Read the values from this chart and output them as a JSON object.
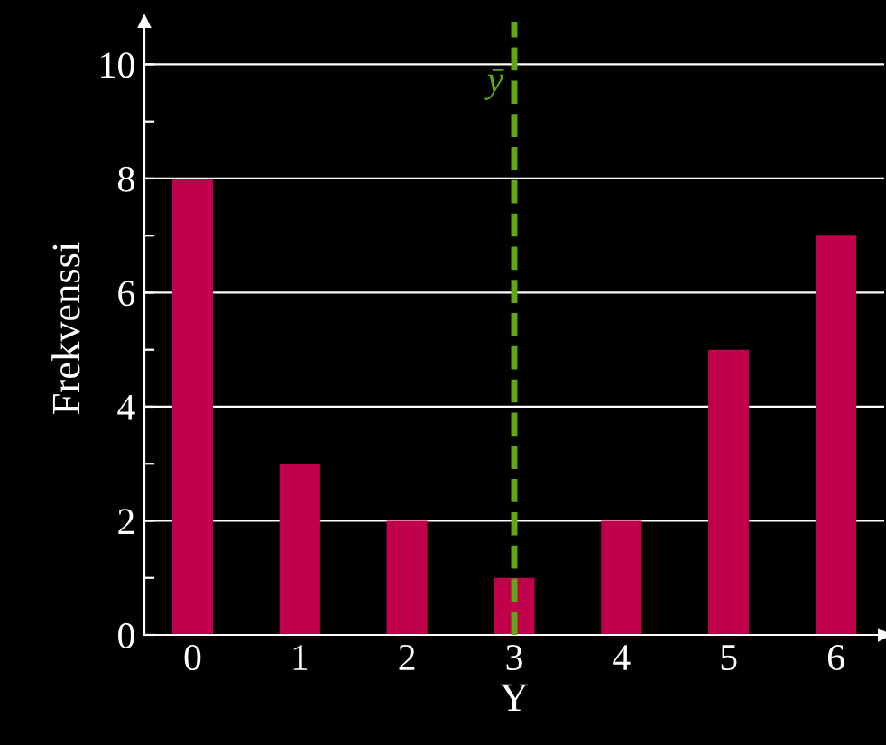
{
  "chart_data": {
    "type": "bar",
    "xlabel": "Y",
    "ylabel": "Frekvenssi",
    "x": [
      0,
      1,
      2,
      3,
      4,
      5,
      6
    ],
    "values": [
      8,
      3,
      2,
      1,
      2,
      5,
      7
    ],
    "color": "#c0004a",
    "xlim": [
      -0.45,
      6.45
    ],
    "ylim": [
      0,
      10.75
    ],
    "xticks": [
      0,
      1,
      2,
      3,
      4,
      5,
      6
    ],
    "yticks": [
      0,
      {
        "value": 1,
        "label": null
      },
      2,
      {
        "value": 3,
        "label": null
      },
      4,
      {
        "value": 5,
        "label": null
      },
      6,
      {
        "value": 7,
        "label": null
      },
      8,
      {
        "value": 9,
        "label": null
      },
      10
    ],
    "grid": "y",
    "ref_lines": [
      {
        "axis": "x",
        "value": 3,
        "label": "ȳ",
        "color": "#5fa80f",
        "line_style": "dashed"
      }
    ]
  }
}
